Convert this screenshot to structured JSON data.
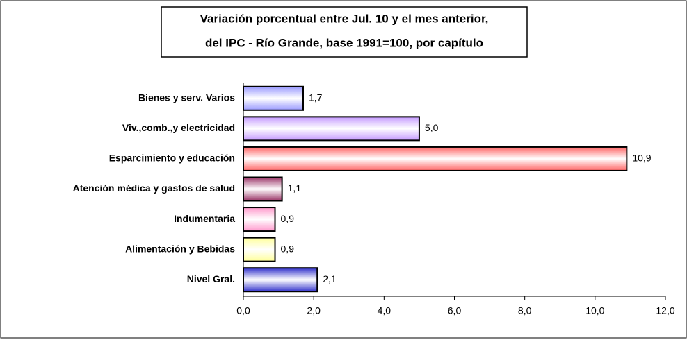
{
  "chart_data": {
    "type": "bar",
    "orientation": "horizontal",
    "title": [
      "Variación porcentual entre Jul. 10 y el mes anterior,",
      "del IPC - Río Grande, base 1991=100, por capítulo"
    ],
    "categories": [
      "Bienes y serv. Varios",
      "Viv.,comb.,y electricidad",
      "Esparcimiento y educación",
      "Atención médica y gastos de salud",
      "Indumentaria",
      "Alimentación y Bebidas",
      "Nivel Gral."
    ],
    "values": [
      1.7,
      5.0,
      10.9,
      1.1,
      0.9,
      0.9,
      2.1
    ],
    "value_labels": [
      "1,7",
      "5,0",
      "10,9",
      "1,1",
      "0,9",
      "0,9",
      "2,1"
    ],
    "colors": [
      "#9999ff",
      "#c499ff",
      "#ff6666",
      "#993366",
      "#ff99cc",
      "#ffff99",
      "#3333cc"
    ],
    "xlim": [
      0,
      12
    ],
    "xticks": [
      {
        "value": 0,
        "label": "0,0"
      },
      {
        "value": 2,
        "label": "2,0"
      },
      {
        "value": 4,
        "label": "4,0"
      },
      {
        "value": 6,
        "label": "6,0"
      },
      {
        "value": 8,
        "label": "8,0"
      },
      {
        "value": 10,
        "label": "10,0"
      },
      {
        "value": 12,
        "label": "12,0"
      }
    ]
  }
}
